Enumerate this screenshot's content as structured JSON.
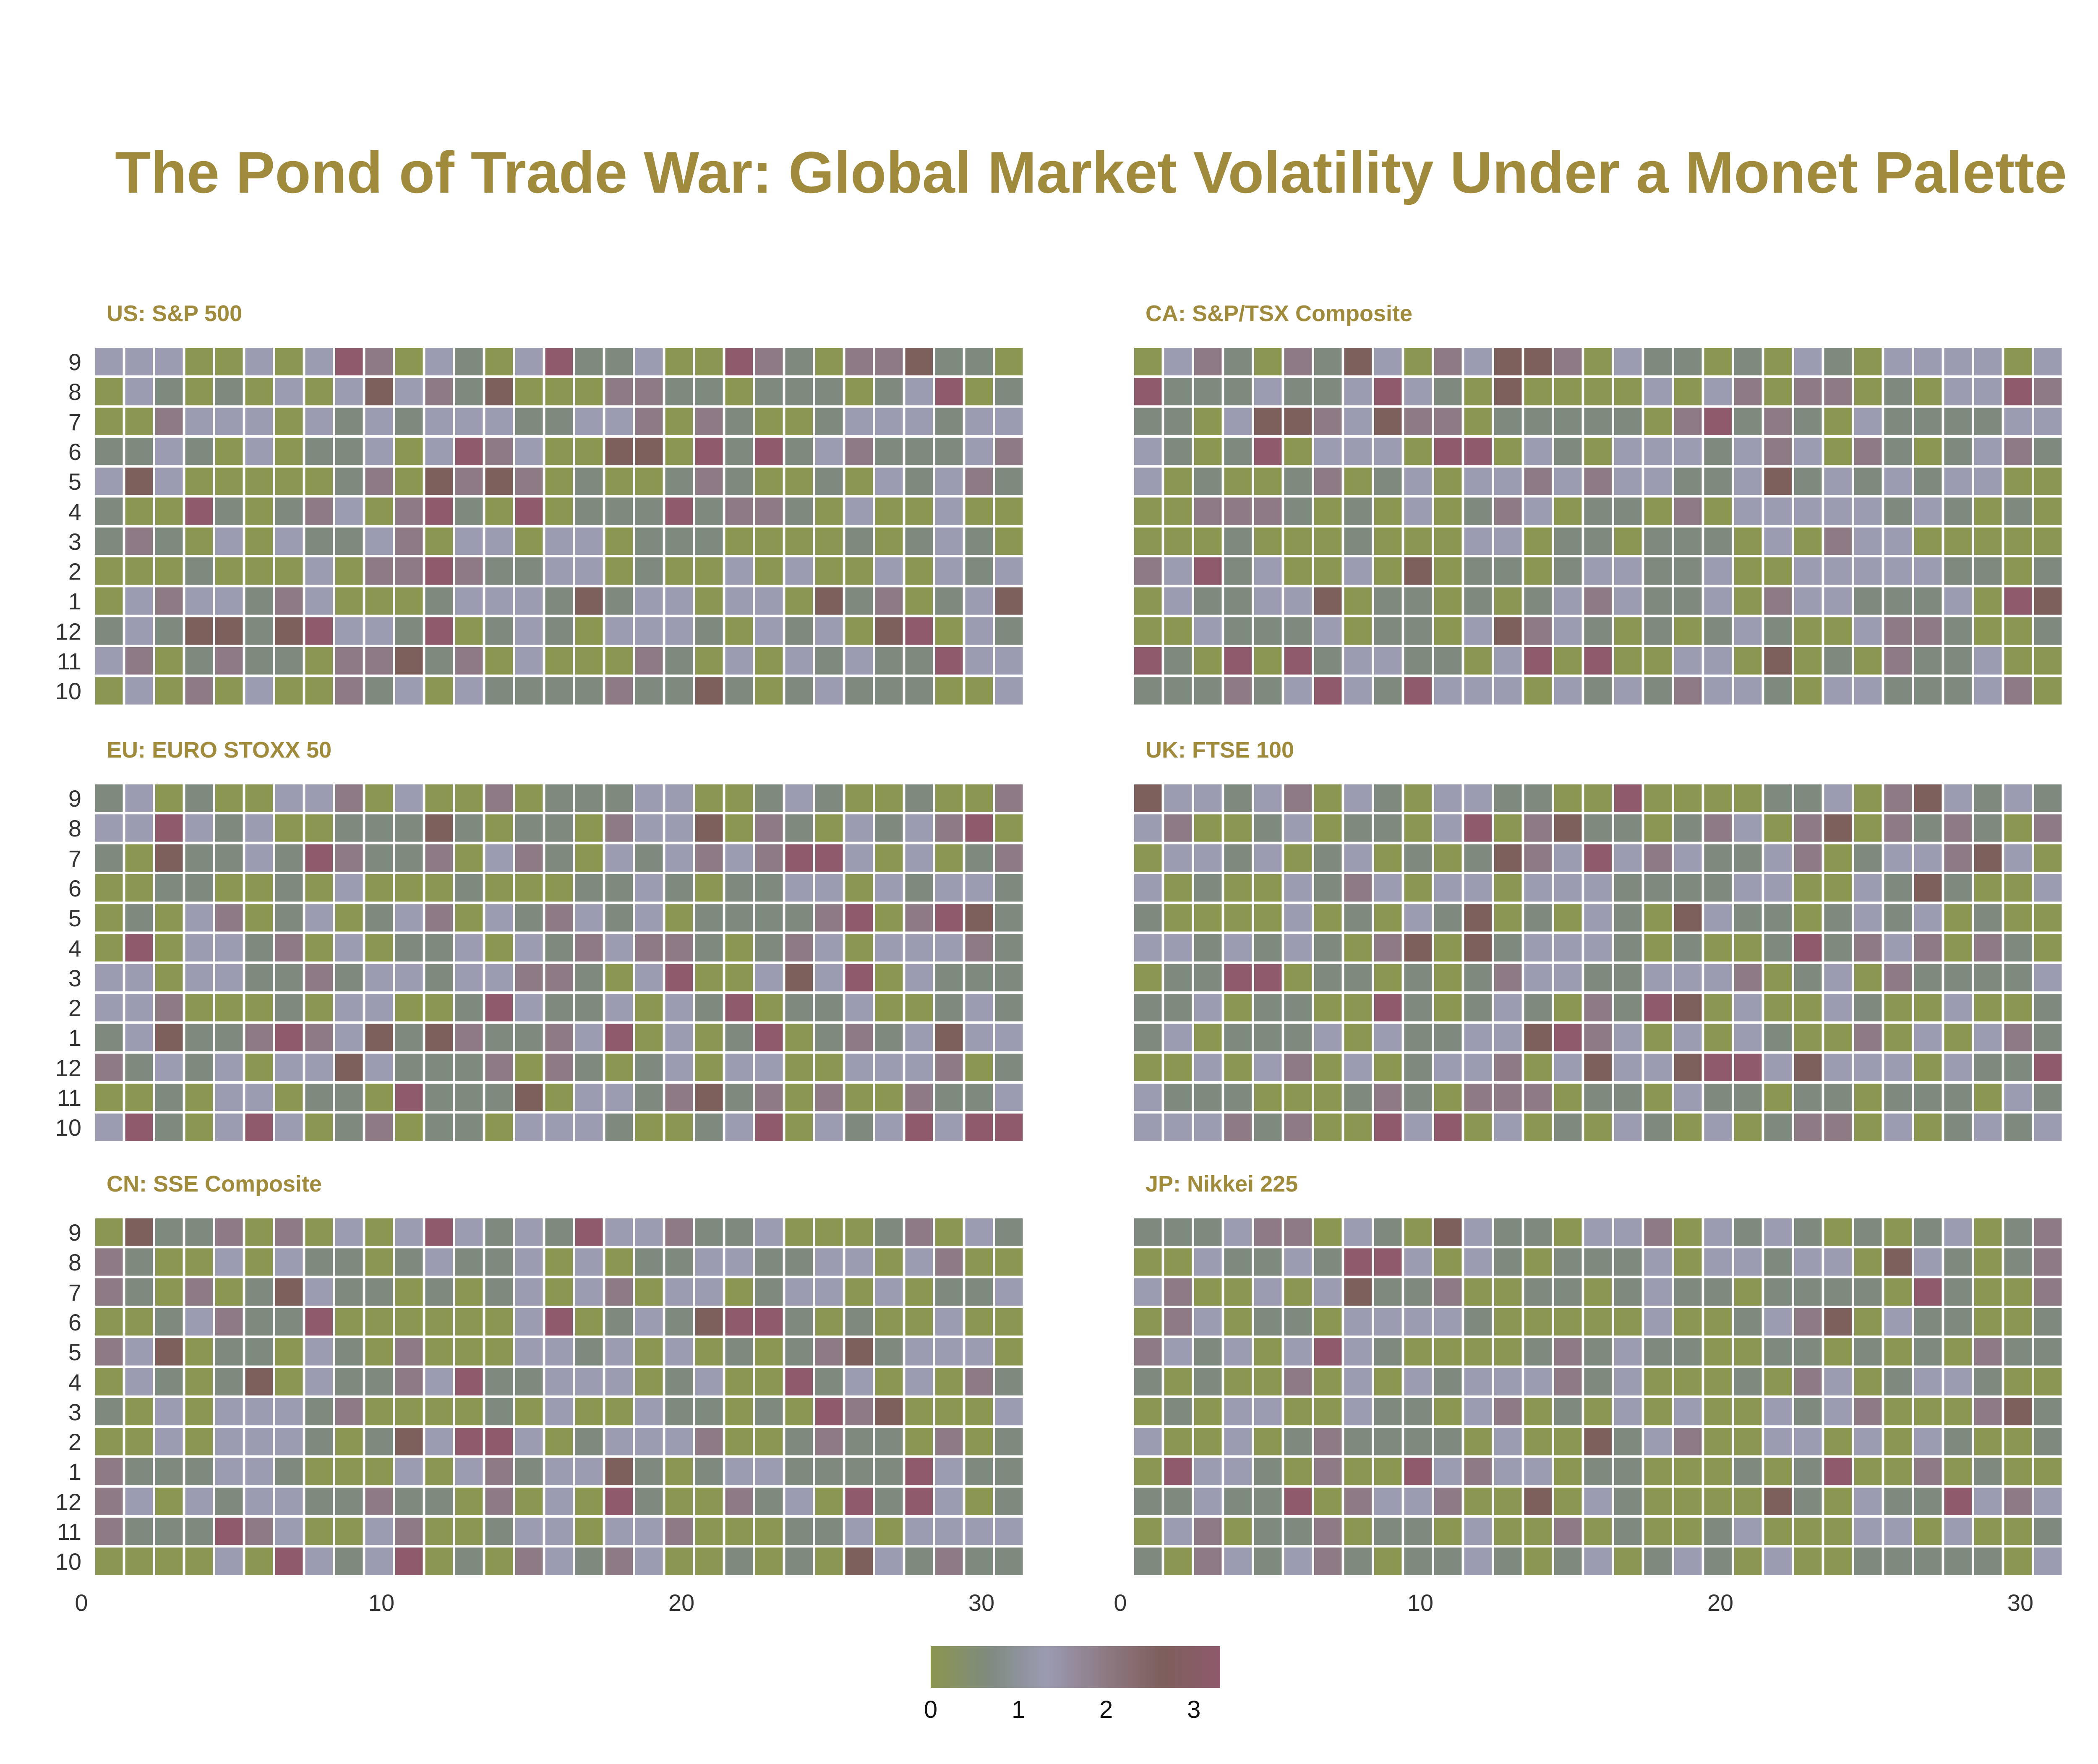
{
  "title": "The Pond of Trade War: Global Market Volatility Under a Monet Palette",
  "colors": {
    "title": "#a08a3c",
    "scale": [
      "#8b9650",
      "#7f8a7f",
      "#9b9bb2",
      "#8e7a84",
      "#7d5f5b",
      "#8e5a6c"
    ]
  },
  "chart_data": {
    "type": "heatmap",
    "x_ticks": [
      0,
      10,
      20,
      30
    ],
    "x_range": [
      0,
      31
    ],
    "y_categories_top_to_bottom": [
      "9",
      "8",
      "7",
      "6",
      "5",
      "4",
      "3",
      "2",
      "1",
      "12",
      "11",
      "10"
    ],
    "colorbar": {
      "ticks": [
        "0",
        "1",
        "2",
        "3"
      ],
      "range": [
        0,
        3.3
      ]
    },
    "panels": [
      {
        "title": "US: S&P 500"
      },
      {
        "title": "CA: S&P/TSX Composite"
      },
      {
        "title": "EU: EURO STOXX 50"
      },
      {
        "title": "UK: FTSE 100"
      },
      {
        "title": "CN: SSE Composite"
      },
      {
        "title": "JP: Nikkei 225"
      }
    ]
  }
}
